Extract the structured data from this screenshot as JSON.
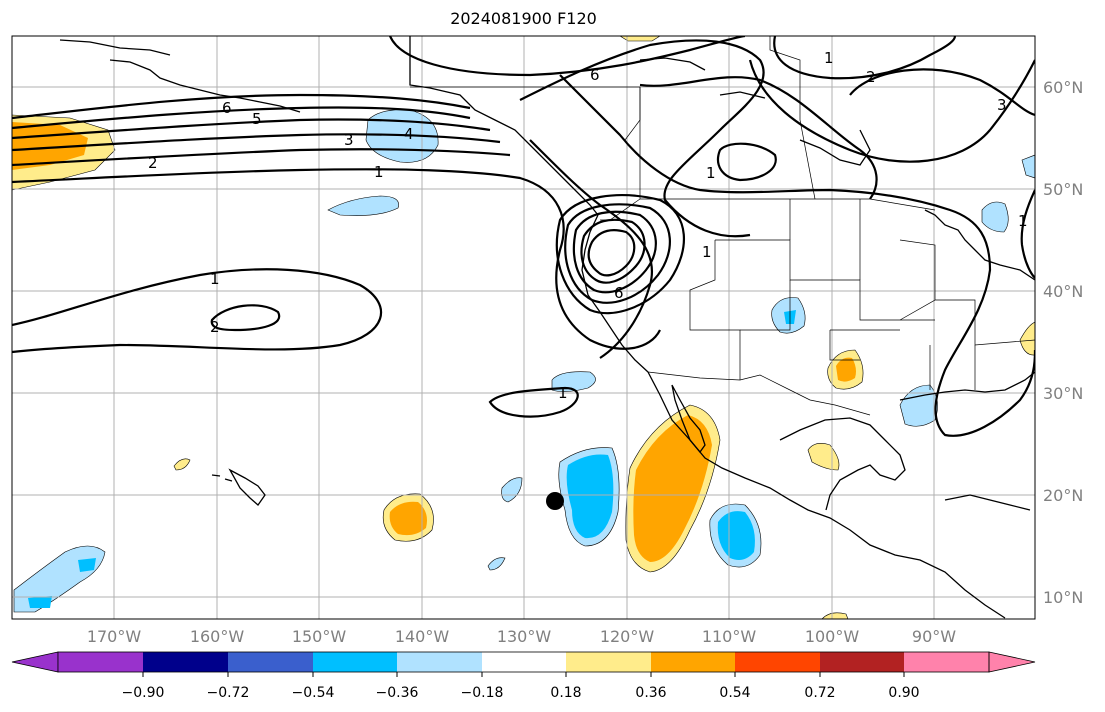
{
  "title": "2024081900 F120",
  "map": {
    "lon_labels": [
      "170°W",
      "160°W",
      "150°W",
      "140°W",
      "130°W",
      "120°W",
      "110°W",
      "100°W",
      "90°W"
    ],
    "lat_labels": [
      "60°N",
      "50°N",
      "40°N",
      "30°N",
      "20°N",
      "10°N"
    ],
    "contour_labels": [
      "6",
      "5",
      "4",
      "3",
      "2",
      "1",
      "1",
      "2",
      "6",
      "1",
      "2",
      "3",
      "1",
      "1",
      "6",
      "1",
      "1"
    ],
    "marker": "storm-center-dot"
  },
  "colorbar": {
    "ticks": [
      "−0.90",
      "−0.72",
      "−0.54",
      "−0.36",
      "−0.18",
      "0.18",
      "0.36",
      "0.54",
      "0.72",
      "0.90"
    ],
    "colors": [
      "#9932cc",
      "#00008b",
      "#3a5fcd",
      "#00bfff",
      "#b0e2ff",
      "#ffffff",
      "#ffec8b",
      "#ffa500",
      "#ff4500",
      "#b22222",
      "#ff82ab"
    ]
  }
}
